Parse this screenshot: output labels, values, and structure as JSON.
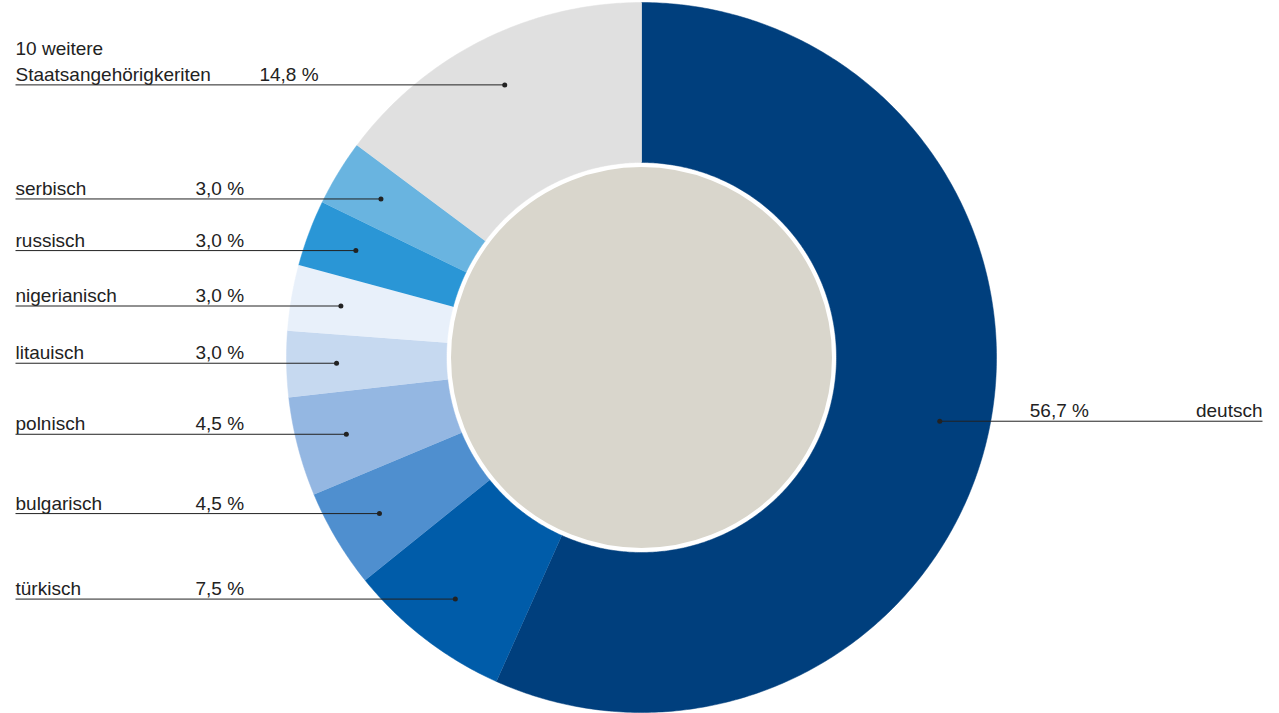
{
  "chart_data": {
    "type": "pie",
    "categories": [
      "deutsch",
      "türkisch",
      "bulgarisch",
      "polnisch",
      "litauisch",
      "nigerianisch",
      "russisch",
      "serbisch",
      "10 weitere Staatsangehörigkeriten"
    ],
    "values": [
      56.7,
      7.5,
      4.5,
      4.5,
      3.0,
      3.0,
      3.0,
      3.0,
      14.8
    ],
    "value_labels": [
      "56,7 %",
      "7,5 %",
      "4,5 %",
      "4,5 %",
      "3,0 %",
      "3,0 %",
      "3,0 %",
      "3,0 %",
      "14,8 %"
    ],
    "colors": [
      "#003f7d",
      "#005ca9",
      "#4f8fcf",
      "#94b7e2",
      "#c6d9f0",
      "#e8f0fa",
      "#2a96d6",
      "#69b4e0",
      "#e0e0e0"
    ],
    "data_labels": true
  }
}
